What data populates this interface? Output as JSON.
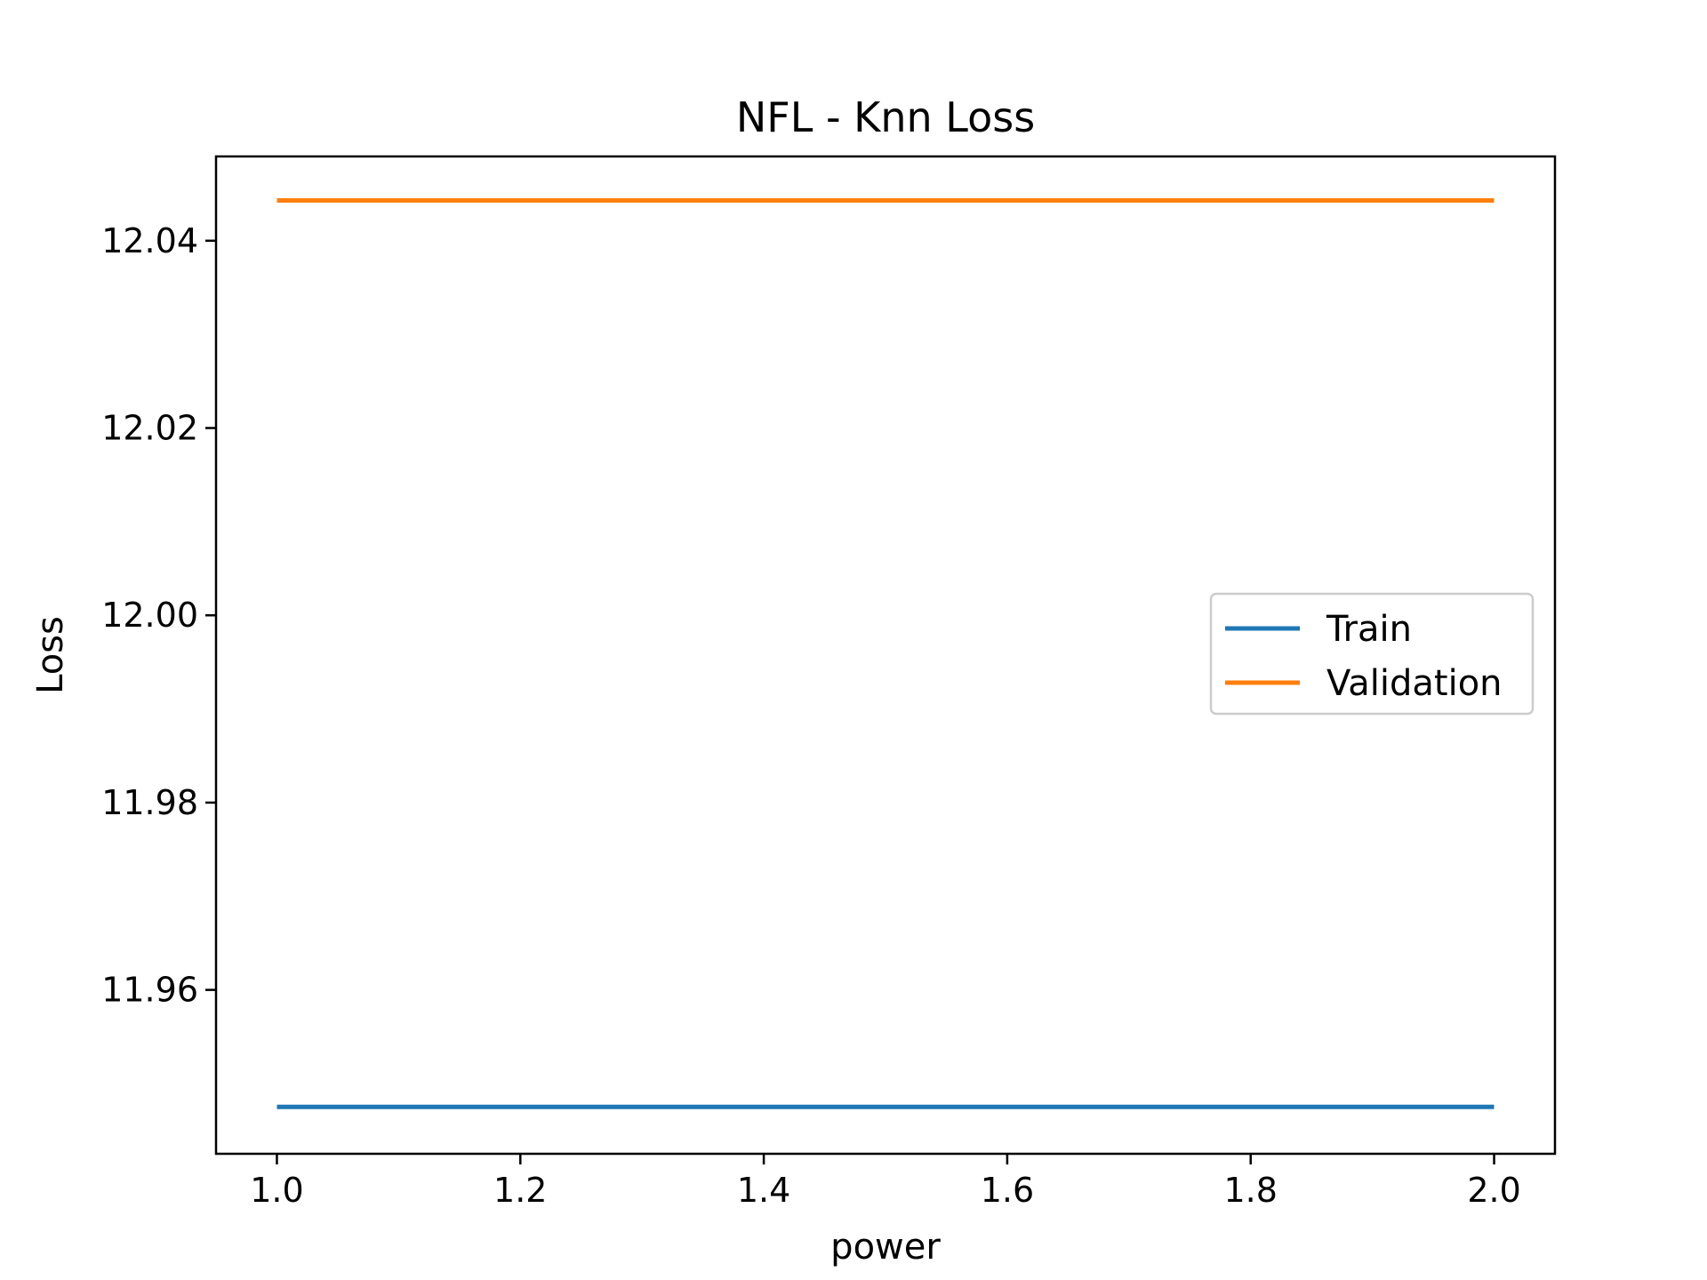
{
  "chart_data": {
    "type": "line",
    "title": "NFL - Knn Loss",
    "xlabel": "power",
    "ylabel": "Loss",
    "xlim": [
      0.95,
      2.05
    ],
    "ylim": [
      11.9425,
      12.049
    ],
    "x_ticks": [
      1.0,
      1.2,
      1.4,
      1.6,
      1.8,
      2.0
    ],
    "x_tick_labels": [
      "1.0",
      "1.2",
      "1.4",
      "1.6",
      "1.8",
      "2.0"
    ],
    "y_ticks": [
      11.96,
      11.98,
      12.0,
      12.02,
      12.04
    ],
    "y_tick_labels": [
      "11.96",
      "11.98",
      "12.00",
      "12.02",
      "12.04"
    ],
    "grid": false,
    "legend_position": "center-right",
    "x": [
      1.0,
      2.0
    ],
    "series": [
      {
        "name": "Train",
        "color": "#1f77b4",
        "values": [
          11.9475,
          11.9475
        ]
      },
      {
        "name": "Validation",
        "color": "#ff7f0e",
        "values": [
          12.0443,
          12.0443
        ]
      }
    ]
  }
}
